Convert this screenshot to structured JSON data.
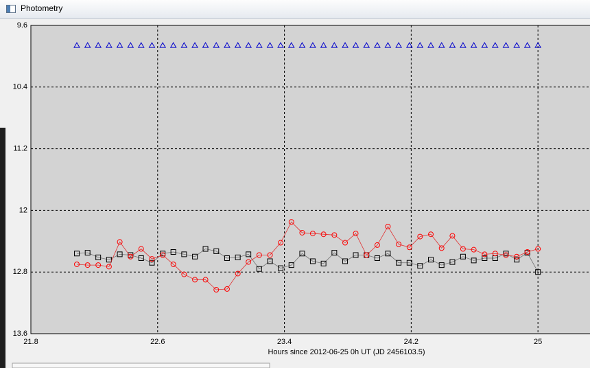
{
  "window": {
    "title": "Photometry"
  },
  "chart_data": {
    "type": "scatter",
    "xlabel": "Hours since 2012-06-25 0h UT (JD 2456103.5)",
    "x": [
      22.09,
      22.158,
      22.225,
      22.293,
      22.361,
      22.429,
      22.496,
      22.564,
      22.632,
      22.699,
      22.767,
      22.835,
      22.902,
      22.97,
      23.038,
      23.106,
      23.173,
      23.241,
      23.309,
      23.376,
      23.444,
      23.512,
      23.579,
      23.647,
      23.715,
      23.783,
      23.85,
      23.918,
      23.986,
      24.053,
      24.121,
      24.189,
      24.256,
      24.324,
      24.392,
      24.46,
      24.527,
      24.595,
      24.663,
      24.73,
      24.798,
      24.866,
      24.933,
      25
    ],
    "series": [
      {
        "color": "#0000cc",
        "marker": "triangle",
        "line": false,
        "values": [
          9.86,
          9.86,
          9.86,
          9.86,
          9.86,
          9.86,
          9.86,
          9.86,
          9.86,
          9.86,
          9.86,
          9.86,
          9.86,
          9.86,
          9.86,
          9.86,
          9.86,
          9.86,
          9.86,
          9.86,
          9.86,
          9.86,
          9.86,
          9.86,
          9.86,
          9.86,
          9.86,
          9.86,
          9.86,
          9.86,
          9.86,
          9.86,
          9.86,
          9.86,
          9.86,
          9.86,
          9.86,
          9.86,
          9.86,
          9.86,
          9.86,
          9.86,
          9.86,
          9.86
        ]
      },
      {
        "color": "#000000",
        "line_color": "#707070",
        "marker": "square",
        "line": true,
        "values": [
          12.56,
          12.55,
          12.61,
          12.64,
          12.57,
          12.58,
          12.62,
          12.68,
          12.56,
          12.54,
          12.57,
          12.6,
          12.5,
          12.53,
          12.62,
          12.61,
          12.57,
          12.76,
          12.66,
          12.75,
          12.71,
          12.56,
          12.66,
          12.69,
          12.55,
          12.66,
          12.58,
          12.58,
          12.62,
          12.56,
          12.68,
          12.68,
          12.72,
          12.64,
          12.71,
          12.67,
          12.6,
          12.65,
          12.62,
          12.62,
          12.56,
          12.64,
          12.55,
          12.8
        ]
      },
      {
        "color": "#ff0000",
        "line_color": "#e03030",
        "marker": "circle",
        "line": true,
        "values": [
          12.7,
          12.71,
          12.71,
          12.73,
          12.41,
          12.6,
          12.5,
          12.63,
          12.58,
          12.7,
          12.83,
          12.9,
          12.9,
          13.03,
          13.02,
          12.82,
          12.67,
          12.58,
          12.58,
          12.42,
          12.15,
          12.29,
          12.3,
          12.31,
          12.32,
          12.42,
          12.3,
          12.58,
          12.45,
          12.21,
          12.44,
          12.48,
          12.34,
          12.31,
          12.49,
          12.33,
          12.5,
          12.51,
          12.57,
          12.56,
          12.58,
          12.6,
          12.54,
          12.5
        ]
      }
    ],
    "xlim": [
      21.8,
      25.35
    ],
    "xticks": [
      21.8,
      22.6,
      23.4,
      24.2,
      25
    ],
    "ylim": [
      9.6,
      13.6
    ],
    "yticks": [
      9.6,
      10.4,
      11.2,
      12,
      12.8,
      13.6
    ],
    "y_inverted": true,
    "grid": true
  }
}
